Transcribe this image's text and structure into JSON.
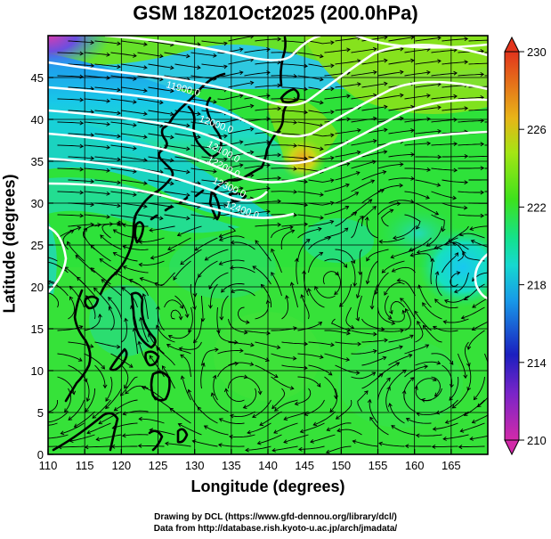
{
  "title": "GSM 18Z01Oct2025 (200.0hPa)",
  "map": {
    "xlabel": "Longitude (degrees)",
    "ylabel": "Latitude  (degrees)",
    "lon_range": [
      110,
      170
    ],
    "lat_range": [
      0,
      50
    ],
    "lon_ticks": [
      "110",
      "115",
      "120",
      "125",
      "130",
      "135",
      "140",
      "145",
      "150",
      "155",
      "160",
      "165"
    ],
    "lat_ticks": [
      "0",
      "5",
      "10",
      "15",
      "20",
      "25",
      "30",
      "35",
      "40",
      "45"
    ],
    "contour_labels": [
      "11900.0",
      "12000.0",
      "12100.0",
      "12200.0",
      "12300.0",
      "12400.0"
    ],
    "colorbar": {
      "min": 210,
      "max": 230,
      "ticks": [
        "210",
        "214",
        "218",
        "222",
        "226",
        "230"
      ],
      "colors": [
        "#d22aa9",
        "#1b1fbf",
        "#16b8ef",
        "#14e2a0",
        "#48e21c",
        "#a4e514",
        "#e8b418",
        "#e2341c"
      ]
    }
  },
  "credits": {
    "line1": "Drawing by DCL (https://www.gfd-dennou.org/library/dcl/)",
    "line2": "Data from http://database.rish.kyoto-u.ac.jp/arch/jmadata/"
  }
}
